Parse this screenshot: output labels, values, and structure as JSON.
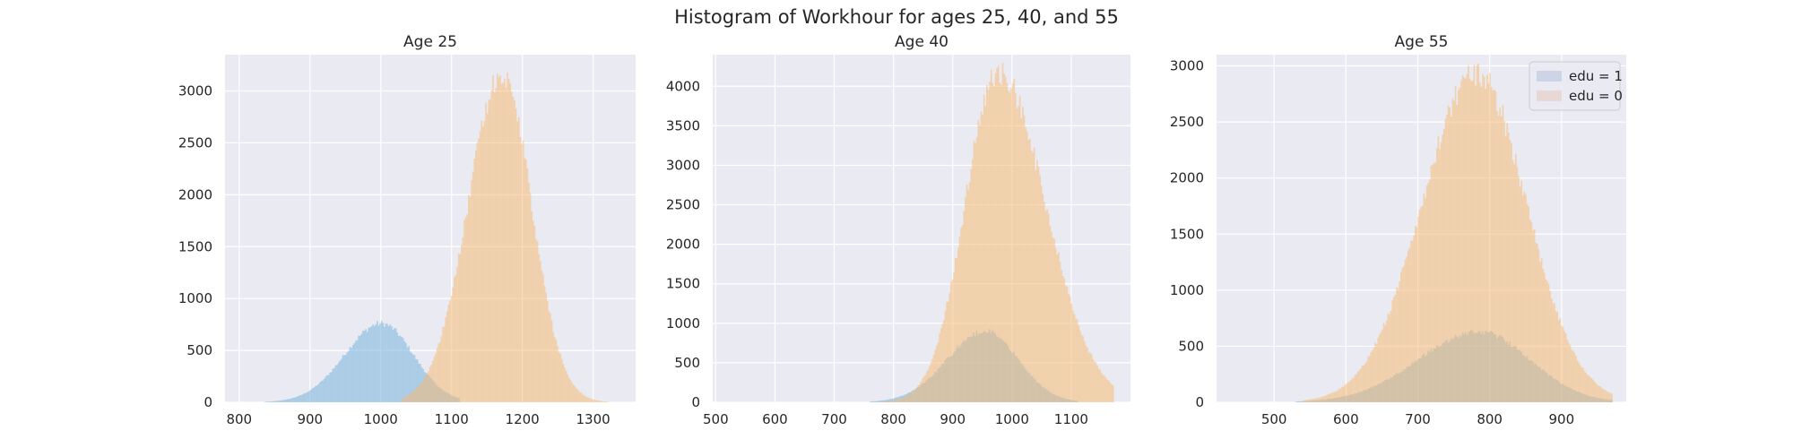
{
  "figure": {
    "suptitle": "Histogram of Workhour for ages 25, 40, and 55",
    "background": "#ffffff",
    "axes_background": "#eaeaf2",
    "grid_color": "#ffffff"
  },
  "legend": {
    "items": [
      {
        "label": "edu = 1",
        "color": "#4c72b0"
      },
      {
        "label": "edu = 0",
        "color": "#dd8452"
      }
    ]
  },
  "chart_data": [
    {
      "type": "histogram",
      "title": "Age 25",
      "xlim": [
        780,
        1360
      ],
      "ylim": [
        0,
        3350
      ],
      "xticks": [
        800,
        900,
        1000,
        1100,
        1200,
        1300
      ],
      "yticks": [
        0,
        500,
        1000,
        1500,
        2000,
        2500,
        3000
      ],
      "grid": true,
      "legend": false,
      "series": [
        {
          "color": "#7fb8e0",
          "alpha": 0.6,
          "peak_x": 1000,
          "peak_y": 760,
          "spread_left": 52,
          "spread_right": 45,
          "x_range": [
            830,
            1110
          ]
        },
        {
          "color": "#f6b973",
          "alpha": 0.55,
          "peak_x": 1170,
          "peak_y": 3160,
          "spread_left": 48,
          "spread_right": 42,
          "x_range": [
            1030,
            1320
          ]
        }
      ]
    },
    {
      "type": "histogram",
      "title": "Age 40",
      "xlim": [
        495,
        1200
      ],
      "ylim": [
        0,
        4400
      ],
      "xticks": [
        500,
        600,
        700,
        800,
        900,
        1000,
        1100
      ],
      "yticks": [
        0,
        500,
        1000,
        1500,
        2000,
        2500,
        3000,
        3500,
        4000
      ],
      "grid": true,
      "legend": false,
      "series": [
        {
          "color": "#7fb8e0",
          "alpha": 0.6,
          "peak_x": 955,
          "peak_y": 900,
          "spread_left": 65,
          "spread_right": 55,
          "x_range": [
            760,
            1110
          ]
        },
        {
          "color": "#f6b973",
          "alpha": 0.55,
          "peak_x": 975,
          "peak_y": 4180,
          "spread_left": 55,
          "spread_right": 80,
          "x_range": [
            700,
            1170
          ]
        }
      ]
    },
    {
      "type": "histogram",
      "title": "Age 55",
      "xlim": [
        420,
        990
      ],
      "ylim": [
        0,
        3100
      ],
      "xticks": [
        500,
        600,
        700,
        800,
        900
      ],
      "yticks": [
        0,
        500,
        1000,
        1500,
        2000,
        2500,
        3000
      ],
      "grid": true,
      "legend": true,
      "legend_position": "top-right",
      "series": [
        {
          "color": "#7fb8e0",
          "alpha": 0.6,
          "peak_x": 785,
          "peak_y": 630,
          "spread_left": 85,
          "spread_right": 70,
          "x_range": [
            530,
            970
          ]
        },
        {
          "color": "#f6b973",
          "alpha": 0.55,
          "peak_x": 780,
          "peak_y": 2940,
          "spread_left": 75,
          "spread_right": 70,
          "x_range": [
            540,
            970
          ]
        }
      ]
    }
  ]
}
